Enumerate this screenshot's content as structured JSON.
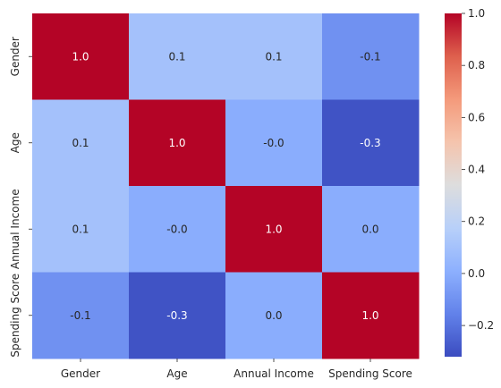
{
  "chart_data": {
    "type": "heatmap",
    "title": "",
    "xlabel": "",
    "ylabel": "",
    "x_categories": [
      "Gender",
      "Age",
      "Annual Income",
      "Spending Score"
    ],
    "y_categories": [
      "Gender",
      "Age",
      "Annual Income",
      "Spending Score"
    ],
    "values": [
      [
        1.0,
        0.1,
        0.1,
        -0.1
      ],
      [
        0.1,
        1.0,
        -0.0,
        -0.3
      ],
      [
        0.1,
        -0.0,
        1.0,
        0.0
      ],
      [
        -0.1,
        -0.3,
        0.0,
        1.0
      ]
    ],
    "value_labels": [
      [
        "1.0",
        "0.1",
        "0.1",
        "-0.1"
      ],
      [
        "0.1",
        "1.0",
        "-0.0",
        "-0.3"
      ],
      [
        "0.1",
        "-0.0",
        "1.0",
        "0.0"
      ],
      [
        "-0.1",
        "-0.3",
        "0.0",
        "1.0"
      ]
    ],
    "colormap": "coolwarm",
    "colorbar": {
      "range": [
        -0.32,
        1.0
      ],
      "ticks": [
        -0.2,
        0.0,
        0.2,
        0.4,
        0.6,
        0.8,
        1.0
      ],
      "tick_labels": [
        "−0.2",
        "0.0",
        "0.2",
        "0.4",
        "0.6",
        "0.8",
        "1.0"
      ]
    },
    "grid": false
  }
}
